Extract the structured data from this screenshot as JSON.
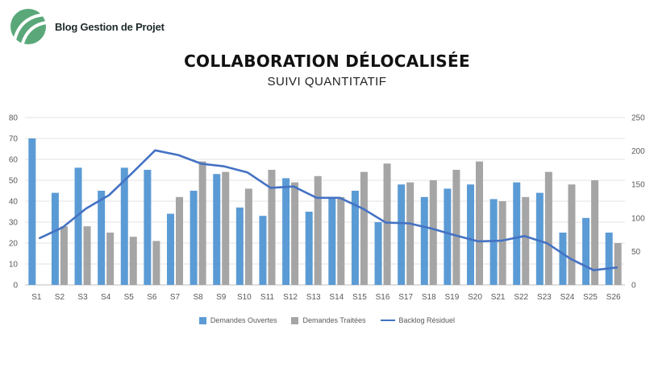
{
  "brand": {
    "name": "Blog Gestion de Projet"
  },
  "header": {
    "title": "COLLABORATION DÉLOCALISÉE",
    "subtitle": "SUIVI QUANTITATIF"
  },
  "colors": {
    "open": "#5b9bd5",
    "treated": "#a5a5a5",
    "backlog": "#4472c4",
    "logo": "#5aa87a"
  },
  "chart_data": {
    "type": "bar",
    "categories": [
      "S1",
      "S2",
      "S3",
      "S4",
      "S5",
      "S6",
      "S7",
      "S8",
      "S9",
      "S10",
      "S11",
      "S12",
      "S13",
      "S14",
      "S15",
      "S16",
      "S17",
      "S18",
      "S19",
      "S20",
      "S21",
      "S22",
      "S23",
      "S24",
      "S25",
      "S26"
    ],
    "series": [
      {
        "name": "Demandes Ouvertes",
        "type": "bar",
        "axis": "left",
        "values": [
          70,
          44,
          56,
          45,
          56,
          55,
          34,
          45,
          53,
          37,
          33,
          51,
          35,
          42,
          45,
          30,
          48,
          42,
          46,
          48,
          41,
          49,
          44,
          25,
          32,
          25
        ]
      },
      {
        "name": "Demandes Traitées",
        "type": "bar",
        "axis": "left",
        "values": [
          0,
          28,
          28,
          25,
          23,
          21,
          42,
          59,
          54,
          46,
          55,
          49,
          52,
          42,
          54,
          58,
          49,
          50,
          55,
          59,
          40,
          42,
          54,
          48,
          50,
          20
        ]
      },
      {
        "name": "Backlog Résiduel",
        "type": "line",
        "axis": "right",
        "values": [
          70,
          86,
          114,
          134,
          167,
          201,
          194,
          181,
          177,
          168,
          145,
          147,
          130,
          130,
          114,
          93,
          92,
          84,
          74,
          65,
          66,
          73,
          62,
          39,
          22,
          26
        ]
      }
    ],
    "ylim_left": [
      0,
      80
    ],
    "yticks_left": [
      "0",
      "10",
      "20",
      "30",
      "40",
      "50",
      "60",
      "70",
      "80"
    ],
    "ylim_right": [
      0,
      250
    ],
    "yticks_right": [
      "0",
      "50",
      "100",
      "150",
      "200",
      "250"
    ],
    "grid": true,
    "legend": "bottom"
  }
}
